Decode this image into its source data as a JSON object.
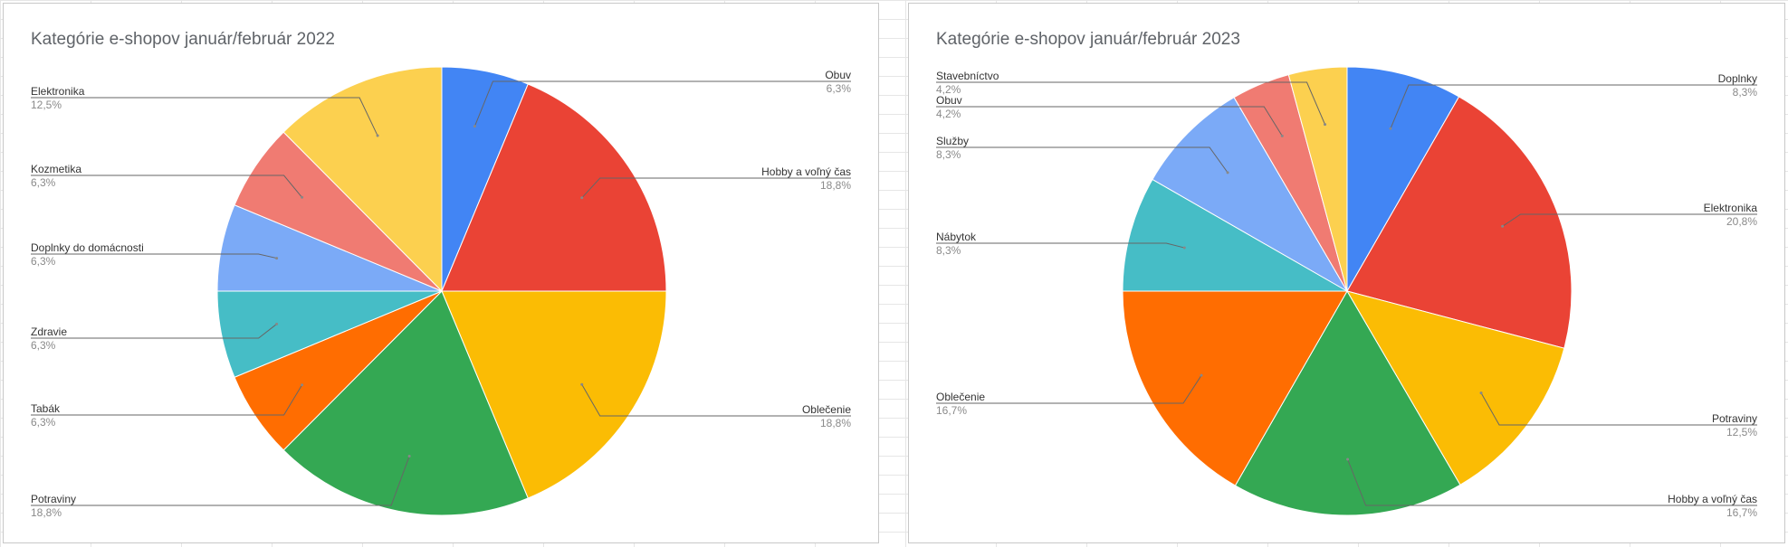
{
  "chart_data": [
    {
      "type": "pie",
      "title": "Kategórie e-shopov január/február 2022",
      "slices": [
        {
          "label": "Obuv",
          "value": 6.3,
          "display": "6,3%",
          "color": "#4285f4"
        },
        {
          "label": "Hobby a voľný čas",
          "value": 18.8,
          "display": "18,8%",
          "color": "#ea4335"
        },
        {
          "label": "Oblečenie",
          "value": 18.8,
          "display": "18,8%",
          "color": "#fbbc04"
        },
        {
          "label": "Potraviny",
          "value": 18.8,
          "display": "18,8%",
          "color": "#34a853"
        },
        {
          "label": "Tabák",
          "value": 6.3,
          "display": "6,3%",
          "color": "#ff6d01"
        },
        {
          "label": "Zdravie",
          "value": 6.3,
          "display": "6,3%",
          "color": "#46bdc6"
        },
        {
          "label": "Doplnky do domácnosti",
          "value": 6.3,
          "display": "6,3%",
          "color": "#7baaf7"
        },
        {
          "label": "Kozmetika",
          "value": 6.3,
          "display": "6,3%",
          "color": "#f07b72"
        },
        {
          "label": "Elektronika",
          "value": 12.5,
          "display": "12,5%",
          "color": "#fcd04f"
        }
      ]
    },
    {
      "type": "pie",
      "title": "Kategórie e-shopov január/február 2023",
      "slices": [
        {
          "label": "Doplnky",
          "value": 8.3,
          "display": "8,3%",
          "color": "#4285f4"
        },
        {
          "label": "Elektronika",
          "value": 20.8,
          "display": "20,8%",
          "color": "#ea4335"
        },
        {
          "label": "Potraviny",
          "value": 12.5,
          "display": "12,5%",
          "color": "#fbbc04"
        },
        {
          "label": "Hobby a voľný čas",
          "value": 16.7,
          "display": "16,7%",
          "color": "#34a853"
        },
        {
          "label": "Oblečenie",
          "value": 16.7,
          "display": "16,7%",
          "color": "#ff6d01"
        },
        {
          "label": "Nábytok",
          "value": 8.3,
          "display": "8,3%",
          "color": "#46bdc6"
        },
        {
          "label": "Služby",
          "value": 8.3,
          "display": "8,3%",
          "color": "#7baaf7"
        },
        {
          "label": "Obuv",
          "value": 4.2,
          "display": "4,2%",
          "color": "#f07b72"
        },
        {
          "label": "Stavebníctvo",
          "value": 4.2,
          "display": "4,2%",
          "color": "#fcd04f"
        }
      ]
    }
  ]
}
